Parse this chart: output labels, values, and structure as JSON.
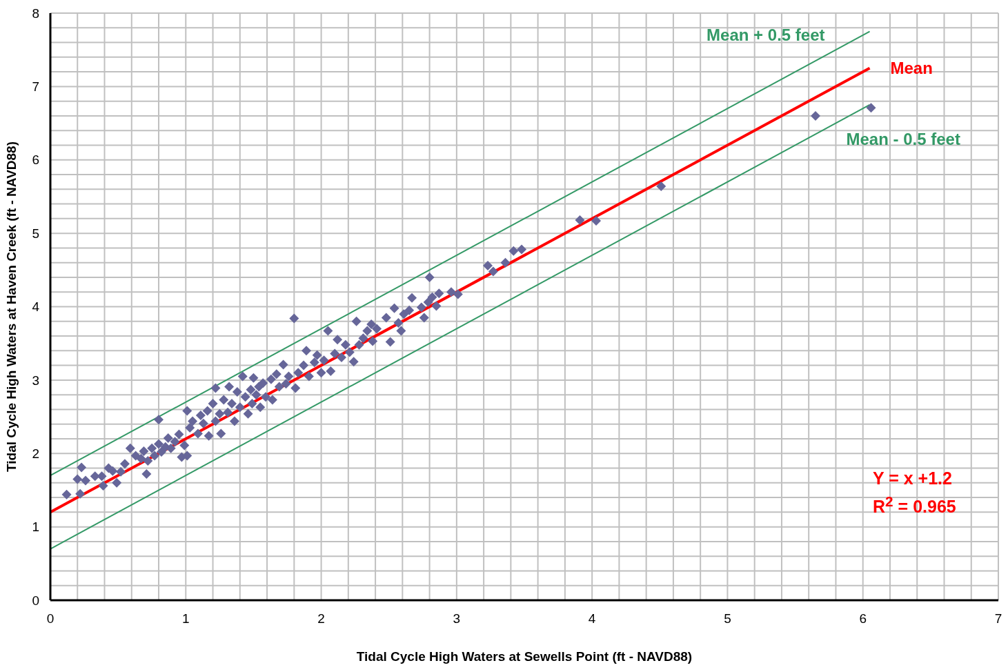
{
  "chart_data": {
    "type": "scatter",
    "xlabel": "Tidal Cycle High Waters at Sewells Point (ft - NAVD88)",
    "ylabel": "Tidal Cycle High Waters at Haven Creek (ft - NAVD88)",
    "annotations": [
      "Y = x +1.2",
      "R$^{2}$ = 0.965"
    ],
    "xlim": [
      0,
      7
    ],
    "ylim": [
      0,
      8
    ],
    "xticks": [
      0,
      {
        "value": 0.2,
        "label": null
      },
      {
        "value": 0.4,
        "label": null
      },
      {
        "value": 0.6,
        "label": null
      },
      {
        "value": 0.8,
        "label": null
      },
      1,
      {
        "value": 1.2,
        "label": null
      },
      {
        "value": 1.4,
        "label": null
      },
      {
        "value": 1.6,
        "label": null
      },
      {
        "value": 1.8,
        "label": null
      },
      2,
      {
        "value": 2.2,
        "label": null
      },
      {
        "value": 2.4,
        "label": null
      },
      {
        "value": 2.6,
        "label": null
      },
      {
        "value": 2.8,
        "label": null
      },
      3,
      {
        "value": 3.2,
        "label": null
      },
      {
        "value": 3.4,
        "label": null
      },
      {
        "value": 3.6,
        "label": null
      },
      {
        "value": 3.8,
        "label": null
      },
      4,
      {
        "value": 4.2,
        "label": null
      },
      {
        "value": 4.4,
        "label": null
      },
      {
        "value": 4.6,
        "label": null
      },
      {
        "value": 4.8,
        "label": null
      },
      5,
      {
        "value": 5.2,
        "label": null
      },
      {
        "value": 5.4,
        "label": null
      },
      {
        "value": 5.6,
        "label": null
      },
      {
        "value": 5.8,
        "label": null
      },
      6,
      {
        "value": 6.2,
        "label": null
      },
      {
        "value": 6.4,
        "label": null
      },
      {
        "value": 6.6,
        "label": null
      },
      {
        "value": 6.8,
        "label": null
      },
      7
    ],
    "yticks": [
      0,
      {
        "value": 0.2,
        "label": null
      },
      {
        "value": 0.4,
        "label": null
      },
      {
        "value": 0.6,
        "label": null
      },
      {
        "value": 0.8,
        "label": null
      },
      1,
      {
        "value": 1.2,
        "label": null
      },
      {
        "value": 1.4,
        "label": null
      },
      {
        "value": 1.6,
        "label": null
      },
      {
        "value": 1.8,
        "label": null
      },
      2,
      {
        "value": 2.2,
        "label": null
      },
      {
        "value": 2.4,
        "label": null
      },
      {
        "value": 2.6,
        "label": null
      },
      {
        "value": 2.8,
        "label": null
      },
      3,
      {
        "value": 3.2,
        "label": null
      },
      {
        "value": 3.4,
        "label": null
      },
      {
        "value": 3.6,
        "label": null
      },
      {
        "value": 3.8,
        "label": null
      },
      4,
      {
        "value": 4.2,
        "label": null
      },
      {
        "value": 4.4,
        "label": null
      },
      {
        "value": 4.6,
        "label": null
      },
      {
        "value": 4.8,
        "label": null
      },
      5,
      {
        "value": 5.2,
        "label": null
      },
      {
        "value": 5.4,
        "label": null
      },
      {
        "value": 5.6,
        "label": null
      },
      {
        "value": 5.8,
        "label": null
      },
      6,
      {
        "value": 6.2,
        "label": null
      },
      {
        "value": 6.4,
        "label": null
      },
      {
        "value": 6.6,
        "label": null
      },
      {
        "value": 6.8,
        "label": null
      },
      7,
      {
        "value": 7.2,
        "label": null
      },
      {
        "value": 7.4,
        "label": null
      },
      {
        "value": 7.6,
        "label": null
      },
      {
        "value": 7.8,
        "label": null
      },
      8
    ],
    "grid": true,
    "marker": "diamond",
    "series": [
      {
        "color": "#666699",
        "x": [
          0.12,
          0.23,
          0.22,
          0.2,
          0.26,
          0.33,
          0.39,
          0.38,
          0.43,
          0.46,
          0.49,
          0.52,
          0.55,
          0.59,
          0.63,
          0.67,
          0.69,
          0.71,
          0.72,
          0.75,
          0.77,
          0.8,
          0.8,
          0.82,
          0.85,
          0.87,
          0.89,
          0.92,
          0.95,
          0.97,
          0.99,
          1.01,
          1.01,
          1.03,
          1.05,
          1.09,
          1.11,
          1.13,
          1.16,
          1.17,
          1.2,
          1.22,
          1.22,
          1.25,
          1.26,
          1.28,
          1.31,
          1.32,
          1.34,
          1.36,
          1.38,
          1.4,
          1.42,
          1.44,
          1.46,
          1.48,
          1.49,
          1.5,
          1.52,
          1.54,
          1.55,
          1.57,
          1.59,
          1.63,
          1.64,
          1.67,
          1.69,
          1.72,
          1.74,
          1.76,
          1.8,
          1.81,
          1.83,
          1.87,
          1.89,
          1.91,
          1.95,
          1.97,
          2.0,
          2.02,
          2.05,
          2.07,
          2.1,
          2.12,
          2.15,
          2.18,
          2.21,
          2.24,
          2.26,
          2.28,
          2.31,
          2.34,
          2.37,
          2.38,
          2.41,
          2.48,
          2.51,
          2.54,
          2.57,
          2.59,
          2.61,
          2.65,
          2.67,
          2.74,
          2.76,
          2.79,
          2.8,
          2.82,
          2.85,
          2.87,
          2.96,
          3.01,
          3.23,
          3.27,
          3.36,
          3.42,
          3.48,
          3.91,
          4.03,
          4.51,
          5.65,
          6.06
        ],
        "values": [
          1.44,
          1.81,
          1.45,
          1.65,
          1.63,
          1.69,
          1.56,
          1.69,
          1.8,
          1.76,
          1.6,
          1.75,
          1.86,
          2.07,
          1.97,
          1.93,
          2.03,
          1.72,
          1.9,
          2.07,
          1.97,
          2.13,
          2.46,
          2.02,
          2.09,
          2.21,
          2.07,
          2.16,
          2.26,
          1.95,
          2.11,
          1.97,
          2.58,
          2.35,
          2.44,
          2.27,
          2.52,
          2.41,
          2.58,
          2.24,
          2.68,
          2.89,
          2.44,
          2.54,
          2.27,
          2.73,
          2.56,
          2.91,
          2.68,
          2.44,
          2.84,
          2.63,
          3.05,
          2.77,
          2.54,
          2.87,
          2.68,
          3.03,
          2.8,
          2.91,
          2.63,
          2.96,
          2.77,
          3.01,
          2.73,
          3.08,
          2.91,
          3.21,
          2.95,
          3.05,
          3.84,
          2.89,
          3.1,
          3.2,
          3.4,
          3.05,
          3.24,
          3.34,
          3.1,
          3.27,
          3.67,
          3.12,
          3.36,
          3.55,
          3.31,
          3.48,
          3.38,
          3.25,
          3.8,
          3.48,
          3.57,
          3.67,
          3.76,
          3.53,
          3.7,
          3.85,
          3.52,
          3.98,
          3.78,
          3.67,
          3.9,
          3.95,
          4.12,
          3.99,
          3.85,
          4.06,
          4.4,
          4.13,
          4.01,
          4.18,
          4.2,
          4.17,
          4.56,
          4.48,
          4.6,
          4.76,
          4.78,
          5.18,
          5.17,
          5.64,
          6.6,
          6.71
        ]
      },
      {
        "type": "line",
        "marker": "none",
        "name": "Mean + 0.5 feet",
        "color": "#339966",
        "x": [
          0,
          6.05
        ],
        "values": [
          1.7,
          7.75
        ]
      },
      {
        "type": "line",
        "marker": "none",
        "name": "Mean",
        "color": "#ff0000",
        "x": [
          0,
          6.05
        ],
        "values": [
          1.2,
          7.25
        ]
      },
      {
        "type": "line",
        "marker": "none",
        "name": "Mean - 0.5 feet",
        "color": "#339966",
        "x": [
          0,
          6.05
        ],
        "values": [
          0.7,
          6.75
        ]
      }
    ]
  }
}
